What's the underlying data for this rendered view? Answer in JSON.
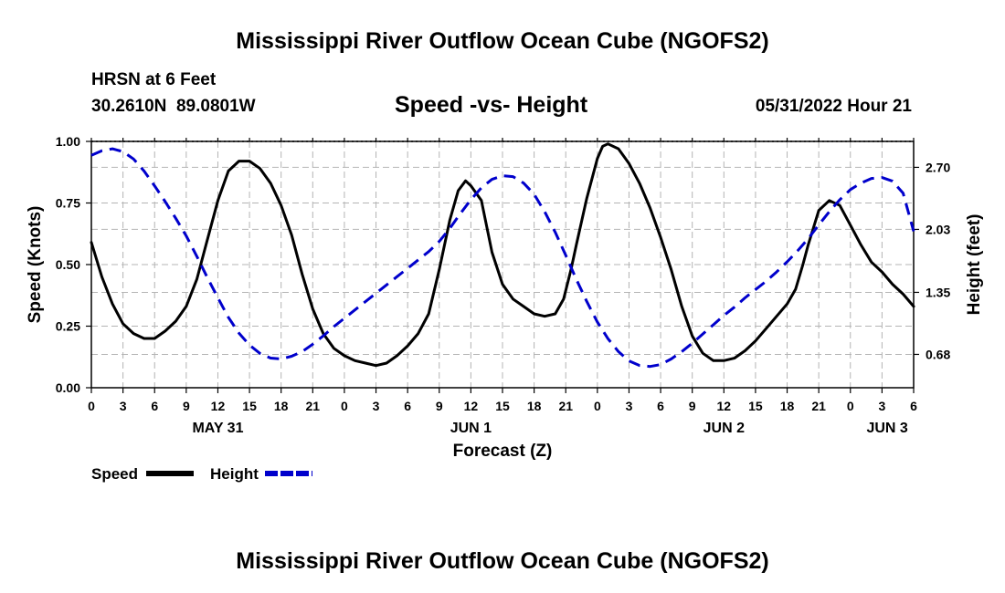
{
  "header": {
    "title": "Mississippi River Outflow Ocean Cube (NGOFS2)",
    "station_name": "HRSN at 6 Feet",
    "station_coords": "30.2610N  89.0801W",
    "chart_title": "Speed -vs- Height",
    "timestamp": "05/31/2022 Hour 21"
  },
  "footer": {
    "title": "Mississippi River Outflow Ocean Cube (NGOFS2)"
  },
  "chart_data": {
    "type": "line",
    "title": "Speed -vs- Height",
    "xlabel": "Forecast (Z)",
    "ylabel": "Speed (Knots)",
    "y2label": "Height (feet)",
    "xlim": [
      0,
      78
    ],
    "ylim": [
      0,
      1
    ],
    "y2lim": [
      0.32,
      2.98
    ],
    "grid": true,
    "x_ticks": [
      0,
      3,
      6,
      9,
      12,
      15,
      18,
      21,
      24,
      27,
      30,
      33,
      36,
      39,
      42,
      45,
      48,
      51,
      54,
      57,
      60,
      63,
      66,
      69,
      72,
      75,
      78
    ],
    "x_tick_labels": [
      "0",
      "3",
      "6",
      "9",
      "12",
      "15",
      "18",
      "21",
      "0",
      "3",
      "6",
      "9",
      "12",
      "15",
      "18",
      "21",
      "0",
      "3",
      "6",
      "9",
      "12",
      "15",
      "18",
      "21",
      "0",
      "3",
      "6"
    ],
    "date_labels": [
      {
        "label": "MAY 31",
        "x": 12
      },
      {
        "label": "JUN 1",
        "x": 36
      },
      {
        "label": "JUN 2",
        "x": 60
      },
      {
        "label": "JUN 3",
        "x": 75.5
      }
    ],
    "y_ticks": [
      0.0,
      0.25,
      0.5,
      0.75,
      1.0
    ],
    "y_tick_labels": [
      "0.00",
      "0.25",
      "0.50",
      "0.75",
      "1.00"
    ],
    "y2_ticks": [
      0.68,
      1.35,
      2.03,
      2.7
    ],
    "y2_tick_labels": [
      "0.68",
      "1.35",
      "2.03",
      "2.70"
    ],
    "series": [
      {
        "name": "Speed",
        "axis": "left",
        "color": "#000000",
        "style": "solid",
        "points": [
          [
            0,
            0.59
          ],
          [
            1,
            0.45
          ],
          [
            2,
            0.34
          ],
          [
            3,
            0.26
          ],
          [
            4,
            0.22
          ],
          [
            5,
            0.2
          ],
          [
            6,
            0.2
          ],
          [
            7,
            0.23
          ],
          [
            8,
            0.27
          ],
          [
            9,
            0.33
          ],
          [
            10,
            0.44
          ],
          [
            11,
            0.6
          ],
          [
            12,
            0.76
          ],
          [
            13,
            0.88
          ],
          [
            14,
            0.92
          ],
          [
            15,
            0.92
          ],
          [
            16,
            0.89
          ],
          [
            17,
            0.83
          ],
          [
            18,
            0.74
          ],
          [
            19,
            0.62
          ],
          [
            20,
            0.46
          ],
          [
            21,
            0.32
          ],
          [
            22,
            0.22
          ],
          [
            23,
            0.16
          ],
          [
            24,
            0.13
          ],
          [
            25,
            0.11
          ],
          [
            26,
            0.1
          ],
          [
            27,
            0.09
          ],
          [
            28,
            0.1
          ],
          [
            29,
            0.13
          ],
          [
            30,
            0.17
          ],
          [
            31,
            0.22
          ],
          [
            32,
            0.3
          ],
          [
            33,
            0.48
          ],
          [
            34,
            0.68
          ],
          [
            34.8,
            0.8
          ],
          [
            35.5,
            0.84
          ],
          [
            36,
            0.82
          ],
          [
            37,
            0.76
          ],
          [
            38,
            0.55
          ],
          [
            39,
            0.42
          ],
          [
            40,
            0.36
          ],
          [
            41,
            0.33
          ],
          [
            42,
            0.3
          ],
          [
            43,
            0.29
          ],
          [
            44,
            0.3
          ],
          [
            44.8,
            0.36
          ],
          [
            45.5,
            0.48
          ],
          [
            46,
            0.58
          ],
          [
            47,
            0.77
          ],
          [
            48,
            0.93
          ],
          [
            48.5,
            0.98
          ],
          [
            49,
            0.99
          ],
          [
            50,
            0.97
          ],
          [
            51,
            0.91
          ],
          [
            52,
            0.83
          ],
          [
            53,
            0.73
          ],
          [
            54,
            0.61
          ],
          [
            55,
            0.48
          ],
          [
            56,
            0.33
          ],
          [
            57,
            0.21
          ],
          [
            58,
            0.14
          ],
          [
            59,
            0.11
          ],
          [
            60,
            0.11
          ],
          [
            61,
            0.12
          ],
          [
            62,
            0.15
          ],
          [
            63,
            0.19
          ],
          [
            64,
            0.24
          ],
          [
            65,
            0.29
          ],
          [
            66,
            0.34
          ],
          [
            66.8,
            0.4
          ],
          [
            67.5,
            0.5
          ],
          [
            68,
            0.58
          ],
          [
            69,
            0.72
          ],
          [
            70,
            0.76
          ],
          [
            71,
            0.74
          ],
          [
            72,
            0.66
          ],
          [
            73,
            0.58
          ],
          [
            74,
            0.51
          ],
          [
            75,
            0.47
          ],
          [
            76,
            0.42
          ],
          [
            77,
            0.38
          ],
          [
            78,
            0.33
          ]
        ]
      },
      {
        "name": "Height",
        "axis": "right",
        "color": "#0000cc",
        "style": "dashed",
        "points": [
          [
            0,
            2.83
          ],
          [
            1,
            2.88
          ],
          [
            2,
            2.9
          ],
          [
            3,
            2.87
          ],
          [
            4,
            2.79
          ],
          [
            5,
            2.66
          ],
          [
            6,
            2.5
          ],
          [
            7,
            2.33
          ],
          [
            8,
            2.15
          ],
          [
            9,
            1.96
          ],
          [
            10,
            1.74
          ],
          [
            11,
            1.51
          ],
          [
            12,
            1.29
          ],
          [
            13,
            1.08
          ],
          [
            14,
            0.91
          ],
          [
            15,
            0.78
          ],
          [
            16,
            0.69
          ],
          [
            17,
            0.64
          ],
          [
            18,
            0.63
          ],
          [
            19,
            0.66
          ],
          [
            20,
            0.71
          ],
          [
            21,
            0.79
          ],
          [
            22,
            0.88
          ],
          [
            23,
            0.98
          ],
          [
            24,
            1.07
          ],
          [
            25,
            1.16
          ],
          [
            26,
            1.25
          ],
          [
            27,
            1.34
          ],
          [
            28,
            1.43
          ],
          [
            29,
            1.52
          ],
          [
            30,
            1.61
          ],
          [
            31,
            1.7
          ],
          [
            32,
            1.79
          ],
          [
            33,
            1.9
          ],
          [
            34,
            2.04
          ],
          [
            35,
            2.2
          ],
          [
            36,
            2.35
          ],
          [
            37,
            2.48
          ],
          [
            38,
            2.57
          ],
          [
            39,
            2.61
          ],
          [
            40,
            2.6
          ],
          [
            41,
            2.53
          ],
          [
            42,
            2.41
          ],
          [
            43,
            2.22
          ],
          [
            44,
            2.0
          ],
          [
            45,
            1.75
          ],
          [
            46,
            1.49
          ],
          [
            47,
            1.25
          ],
          [
            48,
            1.03
          ],
          [
            49,
            0.85
          ],
          [
            50,
            0.71
          ],
          [
            51,
            0.61
          ],
          [
            52,
            0.56
          ],
          [
            53,
            0.55
          ],
          [
            54,
            0.57
          ],
          [
            55,
            0.63
          ],
          [
            56,
            0.71
          ],
          [
            57,
            0.8
          ],
          [
            58,
            0.9
          ],
          [
            59,
            1.0
          ],
          [
            60,
            1.1
          ],
          [
            61,
            1.19
          ],
          [
            62,
            1.29
          ],
          [
            63,
            1.38
          ],
          [
            64,
            1.47
          ],
          [
            65,
            1.57
          ],
          [
            66,
            1.68
          ],
          [
            67,
            1.8
          ],
          [
            68,
            1.93
          ],
          [
            69,
            2.08
          ],
          [
            70,
            2.22
          ],
          [
            71,
            2.35
          ],
          [
            72,
            2.46
          ],
          [
            73,
            2.53
          ],
          [
            74,
            2.58
          ],
          [
            75,
            2.59
          ],
          [
            76,
            2.55
          ],
          [
            77,
            2.42
          ],
          [
            78,
            2.01
          ]
        ]
      }
    ],
    "legend": [
      {
        "label": "Speed",
        "color": "#000000",
        "style": "solid"
      },
      {
        "label": "Height",
        "color": "#0000cc",
        "style": "dashed"
      }
    ],
    "legend_position": "bottom-left"
  }
}
